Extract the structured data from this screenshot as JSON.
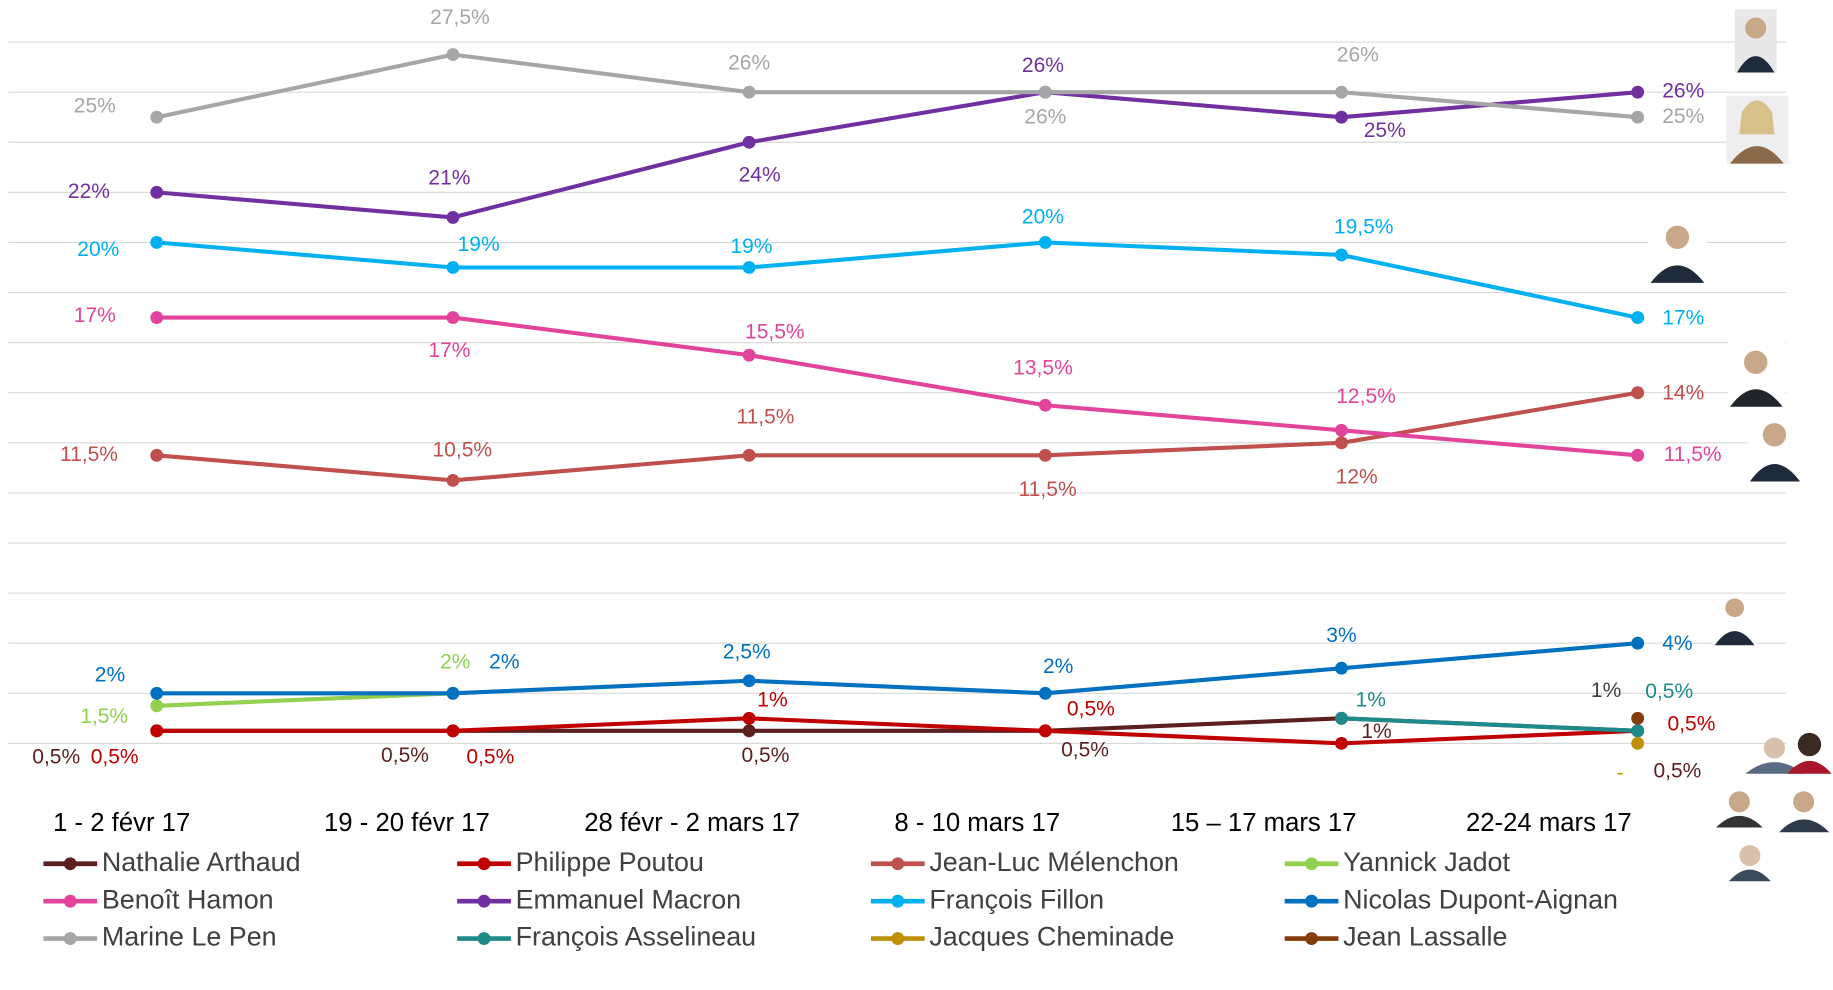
{
  "chart_data": {
    "type": "line",
    "categories": [
      "1 - 2 févr 17",
      "19 - 20 févr 17",
      "28 févr - 2 mars 17",
      "8 - 10 mars 17",
      "15 – 17 mars 17",
      "22-24 mars 17"
    ],
    "ylim": [
      0,
      28
    ],
    "ygrid": [
      0,
      2,
      4,
      6,
      8,
      10,
      12,
      14,
      16,
      18,
      20,
      22,
      24,
      26,
      28
    ],
    "grid": true,
    "series": [
      {
        "name": "Nathalie Arthaud",
        "color": "#5b1f1f",
        "values": [
          0.5,
          0.5,
          0.5,
          0.5,
          1,
          0.5
        ],
        "value_labels": [
          "0,5%",
          "0,5%",
          "0,5%",
          "0,5%",
          "1%",
          "0,5%"
        ]
      },
      {
        "name": "Philippe Poutou",
        "color": "#c00000",
        "values": [
          0.5,
          0.5,
          1,
          0.5,
          0,
          0.5
        ],
        "value_labels": [
          "0,5%",
          "0,5%",
          "1%",
          "0,5%",
          null,
          "0,5%"
        ]
      },
      {
        "name": "Jean-Luc Mélenchon",
        "color": "#c0504d",
        "values": [
          11.5,
          10.5,
          11.5,
          11.5,
          12,
          14
        ],
        "value_labels": [
          "11,5%",
          "10,5%",
          "11,5%",
          "11,5%",
          "12%",
          "14%"
        ]
      },
      {
        "name": "Yannick Jadot",
        "color": "#92d050",
        "values": [
          1.5,
          2,
          null,
          null,
          null,
          null
        ],
        "value_labels": [
          "1,5%",
          "2%",
          null,
          null,
          null,
          null
        ]
      },
      {
        "name": "Benoît Hamon",
        "color": "#e2449b",
        "values": [
          17,
          17,
          15.5,
          13.5,
          12.5,
          11.5
        ],
        "value_labels": [
          "17%",
          "17%",
          "15,5%",
          "13,5%",
          "12,5%",
          "11,5%"
        ]
      },
      {
        "name": "Emmanuel Macron",
        "color": "#7030a0",
        "values": [
          22,
          21,
          24,
          26,
          25,
          26
        ],
        "value_labels": [
          "22%",
          "21%",
          "24%",
          "26%",
          "25%",
          "26%"
        ]
      },
      {
        "name": "François Fillon",
        "color": "#00b0f0",
        "values": [
          20,
          19,
          19,
          20,
          19.5,
          17
        ],
        "value_labels": [
          "20%",
          "19%",
          "19%",
          "20%",
          "19,5%",
          "17%"
        ]
      },
      {
        "name": "Nicolas Dupont-Aignan",
        "color": "#0070c0",
        "values": [
          2,
          2,
          2.5,
          2,
          3,
          4
        ],
        "value_labels": [
          "2%",
          "2%",
          "2,5%",
          "2%",
          "3%",
          "4%"
        ]
      },
      {
        "name": "Marine Le Pen",
        "color": "#a6a6a6",
        "values": [
          25,
          27.5,
          26,
          26,
          26,
          25
        ],
        "value_labels": [
          "25%",
          "27,5%",
          "26%",
          "26%",
          "26%",
          "25%"
        ]
      },
      {
        "name": "François Asselineau",
        "color": "#1f8a8a",
        "values": [
          null,
          null,
          null,
          null,
          1,
          0.5
        ],
        "value_labels": [
          null,
          null,
          null,
          null,
          "1%",
          "0,5%"
        ]
      },
      {
        "name": "Jacques Cheminade",
        "color": "#bf9000",
        "values": [
          null,
          null,
          null,
          null,
          null,
          0
        ],
        "value_labels": [
          null,
          null,
          null,
          null,
          null,
          "-"
        ]
      },
      {
        "name": "Jean Lassalle",
        "color": "#843c0c",
        "label_color": "#404040",
        "values": [
          null,
          null,
          null,
          null,
          null,
          1
        ],
        "value_labels": [
          null,
          null,
          null,
          null,
          null,
          "1%"
        ]
      }
    ]
  }
}
